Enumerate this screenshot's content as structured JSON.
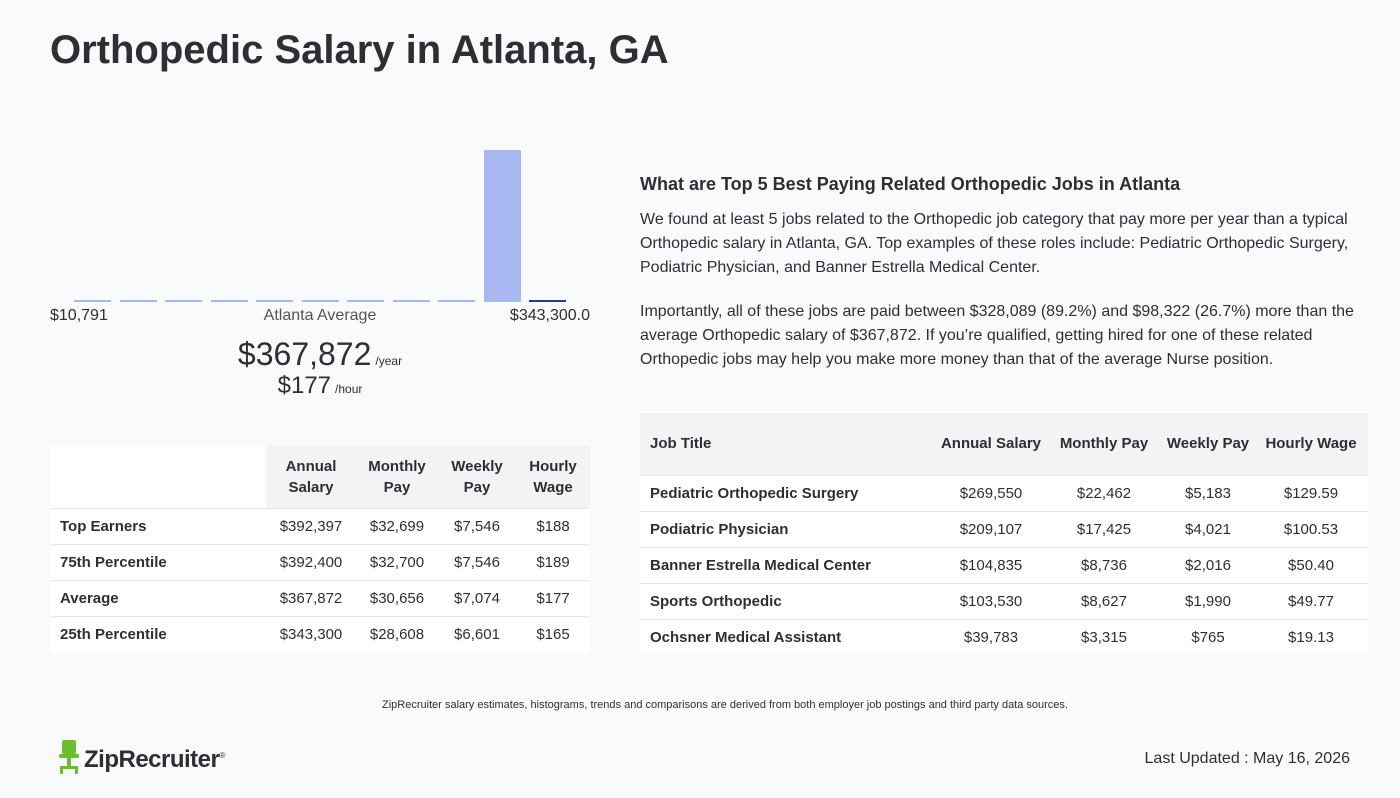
{
  "page": {
    "title": "Orthopedic Salary in Atlanta, GA"
  },
  "histogram": {
    "min_label": "$10,791",
    "mid_label": "Atlanta Average",
    "max_label": "$343,300.0",
    "bar_color": "#a9b8f0",
    "highlight_color": "#2a3a8c",
    "bars": [
      0.01,
      0.01,
      0.01,
      0.01,
      0.01,
      0.01,
      0.01,
      0.01,
      0.01,
      1.0,
      0.01
    ],
    "highlight_index": 10
  },
  "average": {
    "yearly": "$367,872",
    "yearly_unit": "/year",
    "hourly": "$177",
    "hourly_unit": "/hour"
  },
  "percentile_table": {
    "headers": [
      "Annual Salary",
      "Monthly Pay",
      "Weekly Pay",
      "Hourly Wage"
    ],
    "rows": [
      {
        "label": "Top Earners",
        "annual": "$392,397",
        "monthly": "$32,699",
        "weekly": "$7,546",
        "hourly": "$188"
      },
      {
        "label": "75th Percentile",
        "annual": "$392,400",
        "monthly": "$32,700",
        "weekly": "$7,546",
        "hourly": "$189"
      },
      {
        "label": "Average",
        "annual": "$367,872",
        "monthly": "$30,656",
        "weekly": "$7,074",
        "hourly": "$177"
      },
      {
        "label": "25th Percentile",
        "annual": "$343,300",
        "monthly": "$28,608",
        "weekly": "$6,601",
        "hourly": "$165"
      }
    ]
  },
  "related": {
    "heading": "What are Top 5 Best Paying Related Orthopedic Jobs in Atlanta",
    "paragraph1": "We found at least 5 jobs related to the Orthopedic job category that pay more per year than a typical Orthopedic salary in Atlanta, GA. Top examples of these roles include: Pediatric Orthopedic Surgery, Podiatric Physician, and Banner Estrella Medical Center.",
    "paragraph2": "Importantly, all of these jobs are paid between $328,089 (89.2%) and $98,322 (26.7%) more than the average Orthopedic salary of $367,872. If you’re qualified, getting hired for one of these related Orthopedic jobs may help you make more money than that of the average Nurse position."
  },
  "jobs_table": {
    "headers": [
      "Job Title",
      "Annual Salary",
      "Monthly Pay",
      "Weekly Pay",
      "Hourly Wage"
    ],
    "rows": [
      {
        "title": "Pediatric Orthopedic Surgery",
        "annual": "$269,550",
        "monthly": "$22,462",
        "weekly": "$5,183",
        "hourly": "$129.59"
      },
      {
        "title": "Podiatric Physician",
        "annual": "$209,107",
        "monthly": "$17,425",
        "weekly": "$4,021",
        "hourly": "$100.53"
      },
      {
        "title": "Banner Estrella Medical Center",
        "annual": "$104,835",
        "monthly": "$8,736",
        "weekly": "$2,016",
        "hourly": "$50.40"
      },
      {
        "title": "Sports Orthopedic",
        "annual": "$103,530",
        "monthly": "$8,627",
        "weekly": "$1,990",
        "hourly": "$49.77"
      },
      {
        "title": "Ochsner Medical Assistant",
        "annual": "$39,783",
        "monthly": "$3,315",
        "weekly": "$765",
        "hourly": "$19.13"
      }
    ]
  },
  "footer": {
    "disclaimer": "ZipRecruiter salary estimates, histograms, trends and comparisons are derived from both employer job postings and third party data sources.",
    "logo_text": "ZipRecruiter",
    "logo_mark": "®",
    "logo_color": "#6bbf2f",
    "updated": "Last Updated : May 16, 2026"
  }
}
